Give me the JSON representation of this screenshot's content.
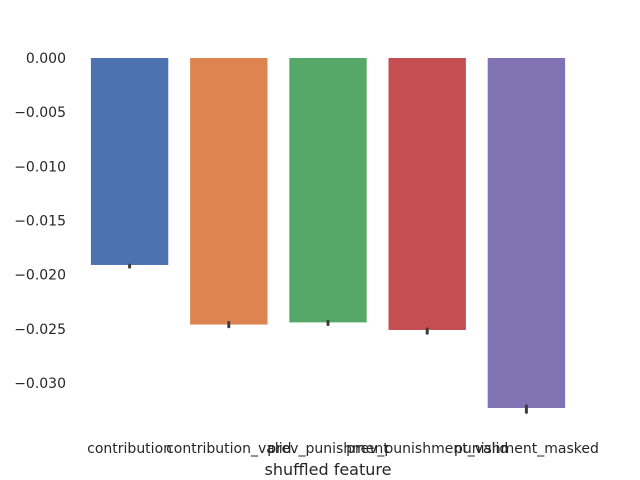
{
  "chart_data": {
    "type": "bar",
    "xlabel": "shuffled feature",
    "ylabel": "",
    "categories": [
      "contribution",
      "contribution_valid",
      "prev_punishment",
      "prev_punishment_valid",
      "punishment_masked"
    ],
    "values": [
      -0.0191,
      -0.0246,
      -0.0244,
      -0.0251,
      -0.0323
    ],
    "error_low": [
      -0.0193,
      -0.0248,
      -0.0246,
      -0.0254,
      -0.0327
    ],
    "error_high": [
      -0.0191,
      -0.0244,
      -0.0243,
      -0.025,
      -0.0321
    ],
    "colors": [
      "#4c72b0",
      "#dd8452",
      "#55a868",
      "#c44e52",
      "#8172b3"
    ],
    "ylim": [
      -0.0335,
      0.0
    ],
    "yticks": [
      0.0,
      -0.005,
      -0.01,
      -0.015,
      -0.02,
      -0.025,
      -0.03
    ],
    "ytick_labels": [
      "0.000",
      "−0.005",
      "−0.010",
      "−0.015",
      "−0.020",
      "−0.025",
      "−0.030"
    ],
    "grid": false,
    "legend": "none"
  }
}
